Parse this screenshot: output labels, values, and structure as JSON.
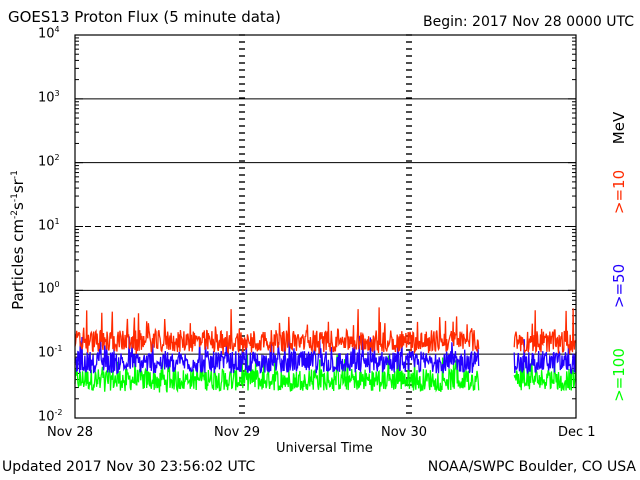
{
  "header": {
    "title": "GOES13 Proton Flux (5 minute data)",
    "begin": "Begin: 2017 Nov 28 0000 UTC"
  },
  "footer": {
    "updated": "Updated 2017 Nov 30 23:56:02 UTC",
    "credit": "NOAA/SWPC Boulder, CO USA"
  },
  "right_labels": {
    "unit": "MeV",
    "ge10": ">=10",
    "ge50": ">=50",
    "ge100": ">=100"
  },
  "colors": {
    "ge10": "#ff2a00",
    "ge50": "#2200ff",
    "ge100": "#00ff00"
  },
  "chart_data": {
    "type": "line",
    "xlabel": "Universal Time",
    "ylabel_base": "Particles cm",
    "ylabel_parts": [
      "Particles cm",
      "-2",
      "s",
      "-1",
      "sr",
      "-1"
    ],
    "yscale": "log",
    "ylim": [
      0.01,
      10000
    ],
    "ytick_exponents": [
      -2,
      -1,
      0,
      1,
      2,
      3,
      4
    ],
    "xticks": [
      "Nov 28",
      "Nov 29",
      "Nov 30",
      "Dec 1"
    ],
    "xlim_days": [
      0,
      3
    ],
    "data_gap_days": [
      2.42,
      2.63
    ],
    "data_end_days": 3.0,
    "grid": "horizontal at each decade; dashed at 10^1; day dividers dashed vertical",
    "series": [
      {
        "name": ">=10 MeV",
        "key": "ge10",
        "typical": 0.16,
        "min": 0.1,
        "max": 0.55
      },
      {
        "name": ">=50 MeV",
        "key": "ge50",
        "typical": 0.075,
        "min": 0.05,
        "max": 0.2
      },
      {
        "name": ">=100 MeV",
        "key": "ge100",
        "typical": 0.04,
        "min": 0.025,
        "max": 0.1
      }
    ]
  }
}
